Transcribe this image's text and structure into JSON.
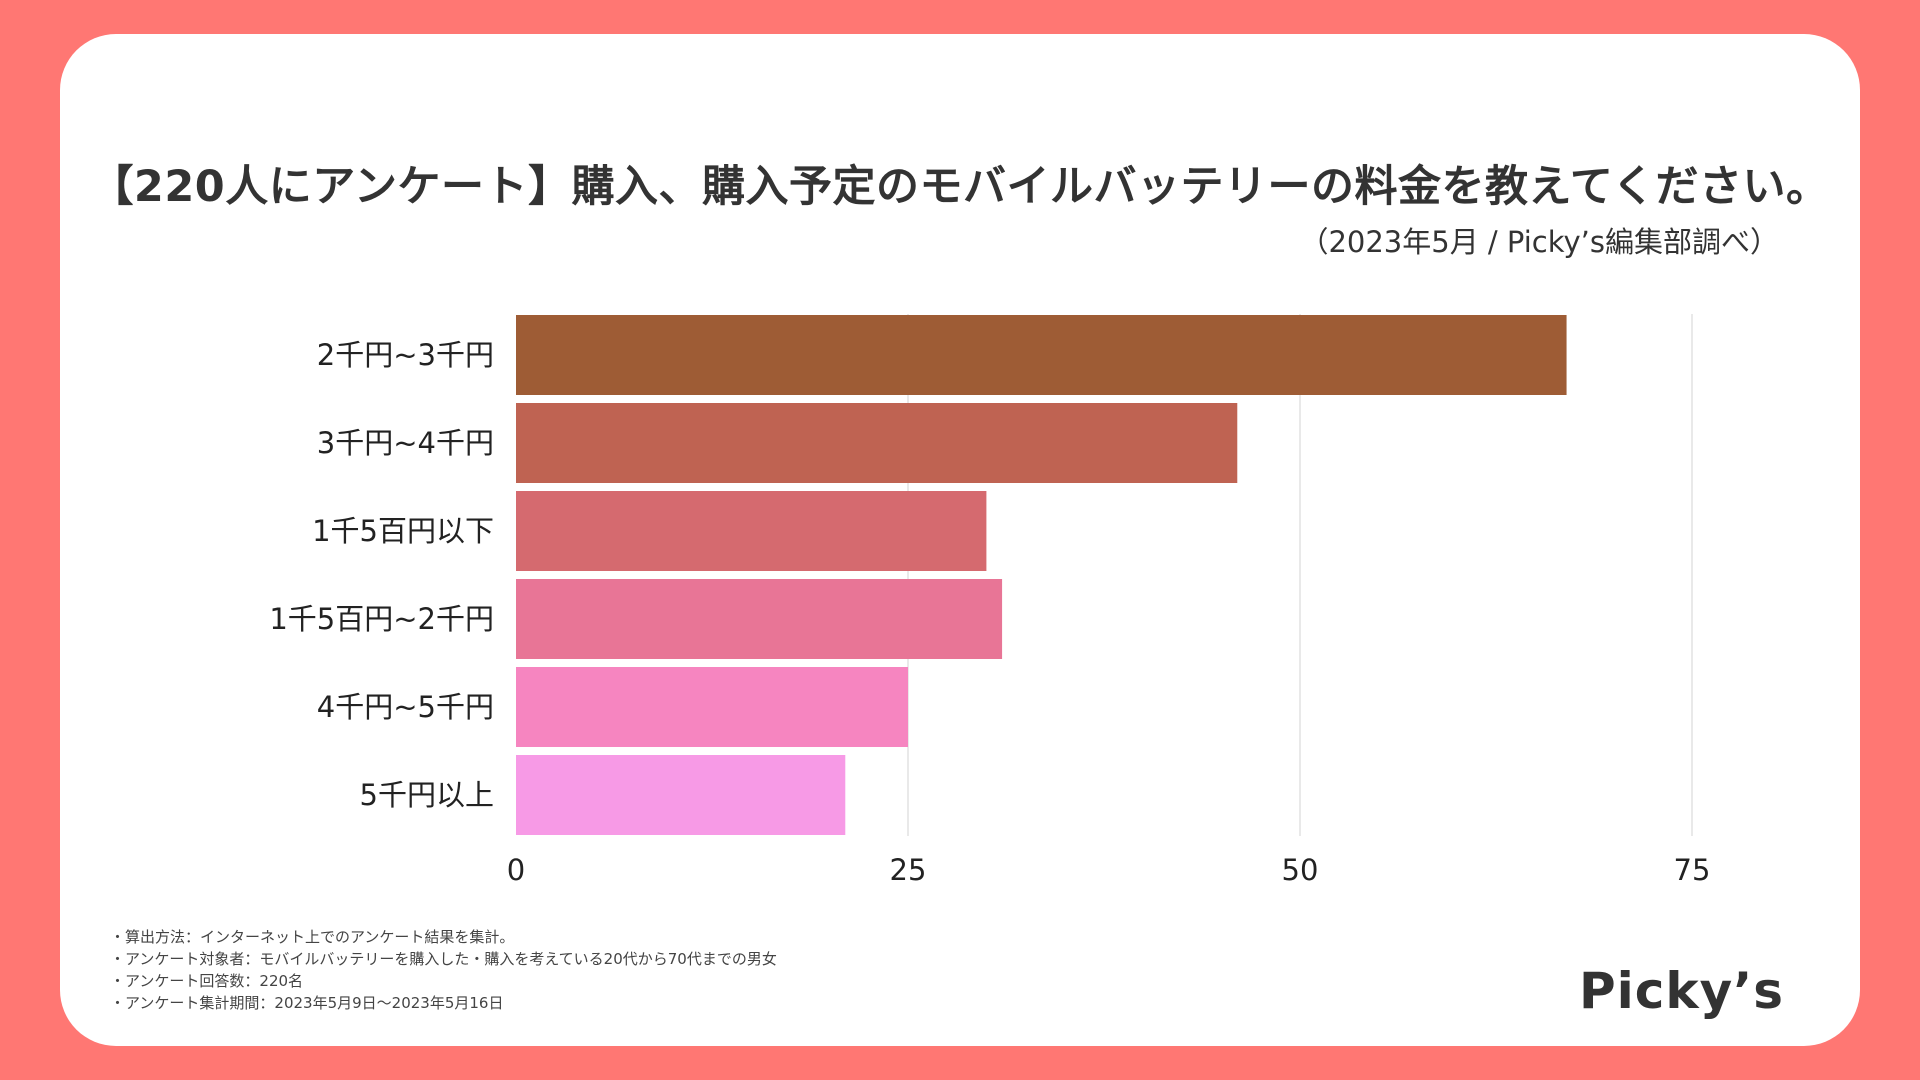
{
  "colors": {
    "background": "#FF7773",
    "card": "#ffffff",
    "bars": [
      "#9E5C35",
      "#BF6352",
      "#D56A6F",
      "#E87596",
      "#F685C0",
      "#F79AE6"
    ]
  },
  "header": {
    "title": "【220人にアンケート】購入、購入予定のモバイルバッテリーの料金を教えてください。",
    "subtitle": "（2023年5月 / Picky’s編集部調べ）"
  },
  "chart_data": {
    "type": "bar",
    "orientation": "horizontal",
    "categories": [
      "2千円~3千円",
      "3千円~4千円",
      "1千5百円以下",
      "1千5百円~2千円",
      "4千円~5千円",
      "5千円以上"
    ],
    "values": [
      67,
      46,
      30,
      31,
      25,
      21
    ],
    "xlim": [
      0,
      80
    ],
    "xticks": [
      0,
      25,
      50,
      75
    ],
    "grid": true,
    "legend": "none"
  },
  "notes": [
    "・算出方法：インターネット上でのアンケート結果を集計。",
    "・アンケート対象者：モバイルバッテリーを購入した・購入を考えている20代から70代までの男女",
    "・アンケート回答数：220名",
    "・アンケート集計期間：2023年5月9日〜2023年5月16日"
  ],
  "brand": {
    "logo_text": "Picky’s"
  }
}
